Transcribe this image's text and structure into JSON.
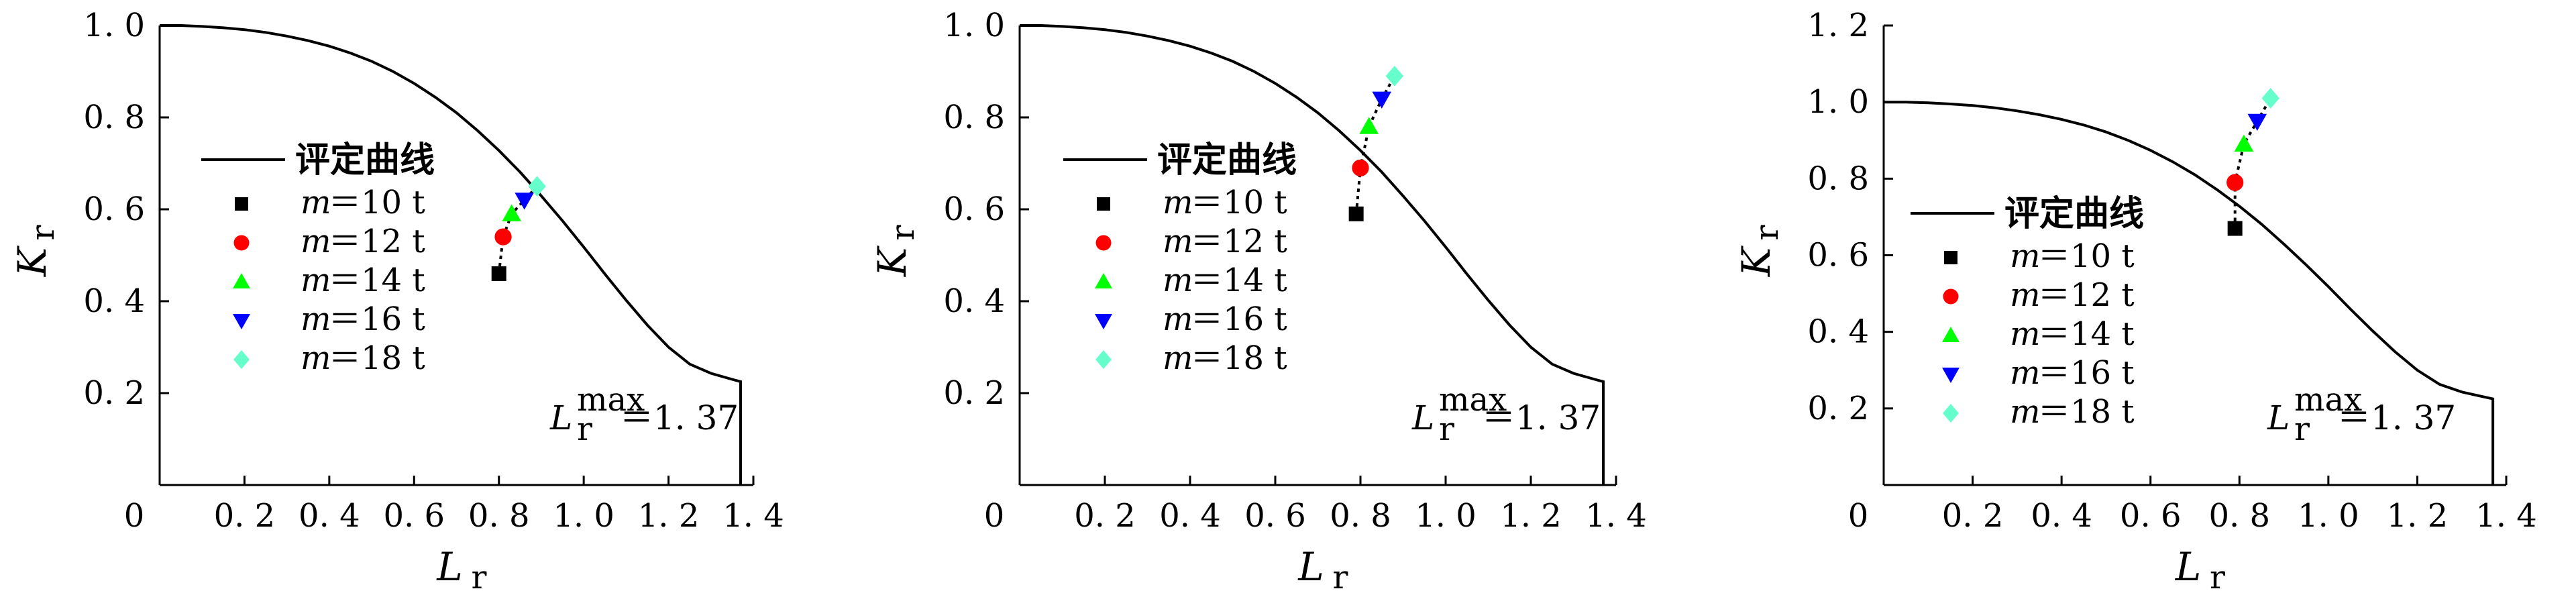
{
  "chart_data": [
    {
      "type": "line",
      "xlabel": "L",
      "xlabel_sub": "r",
      "ylabel": "K",
      "ylabel_sub": "r",
      "xlim": [
        0,
        1.4
      ],
      "ylim": [
        0,
        1.0
      ],
      "x_ticks": [
        0,
        0.2,
        0.4,
        0.6,
        0.8,
        1.0,
        1.2,
        1.4
      ],
      "x_tick_labels": [
        "0",
        "0. 2",
        "0. 4",
        "0. 6",
        "0. 8",
        "1. 0",
        "1. 2",
        "1. 4"
      ],
      "y_ticks": [
        0.2,
        0.4,
        0.6,
        0.8,
        1.0
      ],
      "y_tick_labels": [
        "0. 2",
        "0. 4",
        "0. 6",
        "0. 8",
        "1. 0"
      ],
      "legend": {
        "curve_label": "评定曲线",
        "items": [
          {
            "prefix": "m",
            "text": "＝10 t",
            "marker": "square",
            "color": "#000000"
          },
          {
            "prefix": "m",
            "text": "＝12 t",
            "marker": "circle",
            "color": "#ff0000"
          },
          {
            "prefix": "m",
            "text": "＝14 t",
            "marker": "triangle-up",
            "color": "#00ff00"
          },
          {
            "prefix": "m",
            "text": "＝16 t",
            "marker": "triangle-down",
            "color": "#0000ff"
          },
          {
            "prefix": "m",
            "text": "＝18 t",
            "marker": "diamond",
            "color": "#66ffcc"
          }
        ]
      },
      "annotation": {
        "main": "L",
        "sub": "r",
        "sup": "max",
        "value": "＝1. 37"
      },
      "points": [
        {
          "x": 0.8,
          "y": 0.46
        },
        {
          "x": 0.81,
          "y": 0.54
        },
        {
          "x": 0.83,
          "y": 0.59
        },
        {
          "x": 0.86,
          "y": 0.62
        },
        {
          "x": 0.89,
          "y": 0.65
        }
      ]
    },
    {
      "type": "line",
      "xlabel": "L",
      "xlabel_sub": "r",
      "ylabel": "K",
      "ylabel_sub": "r",
      "xlim": [
        0,
        1.4
      ],
      "ylim": [
        0,
        1.0
      ],
      "x_ticks": [
        0,
        0.2,
        0.4,
        0.6,
        0.8,
        1.0,
        1.2,
        1.4
      ],
      "x_tick_labels": [
        "0",
        "0. 2",
        "0. 4",
        "0. 6",
        "0. 8",
        "1. 0",
        "1. 2",
        "1. 4"
      ],
      "y_ticks": [
        0.2,
        0.4,
        0.6,
        0.8,
        1.0
      ],
      "y_tick_labels": [
        "0. 2",
        "0. 4",
        "0. 6",
        "0. 8",
        "1. 0"
      ],
      "legend": {
        "curve_label": "评定曲线",
        "items": [
          {
            "prefix": "m",
            "text": "＝10 t",
            "marker": "square",
            "color": "#000000"
          },
          {
            "prefix": "m",
            "text": "＝12 t",
            "marker": "circle",
            "color": "#ff0000"
          },
          {
            "prefix": "m",
            "text": "＝14 t",
            "marker": "triangle-up",
            "color": "#00ff00"
          },
          {
            "prefix": "m",
            "text": "＝16 t",
            "marker": "triangle-down",
            "color": "#0000ff"
          },
          {
            "prefix": "m",
            "text": "＝18 t",
            "marker": "diamond",
            "color": "#66ffcc"
          }
        ]
      },
      "annotation": {
        "main": "L",
        "sub": "r",
        "sup": "max",
        "value": "＝1. 37"
      },
      "points": [
        {
          "x": 0.79,
          "y": 0.59
        },
        {
          "x": 0.8,
          "y": 0.69
        },
        {
          "x": 0.82,
          "y": 0.78
        },
        {
          "x": 0.85,
          "y": 0.84
        },
        {
          "x": 0.88,
          "y": 0.89
        }
      ]
    },
    {
      "type": "line",
      "xlabel": "L",
      "xlabel_sub": "r",
      "ylabel": "K",
      "ylabel_sub": "r",
      "xlim": [
        0,
        1.4
      ],
      "ylim": [
        0,
        1.2
      ],
      "x_ticks": [
        0,
        0.2,
        0.4,
        0.6,
        0.8,
        1.0,
        1.2,
        1.4
      ],
      "x_tick_labels": [
        "0",
        "0. 2",
        "0. 4",
        "0. 6",
        "0. 8",
        "1. 0",
        "1. 2",
        "1. 4"
      ],
      "y_ticks": [
        0.2,
        0.4,
        0.6,
        0.8,
        1.0,
        1.2
      ],
      "y_tick_labels": [
        "0. 2",
        "0. 4",
        "0. 6",
        "0. 8",
        "1. 0",
        "1. 2"
      ],
      "legend": {
        "curve_label": "评定曲线",
        "items": [
          {
            "prefix": "m",
            "text": "＝10 t",
            "marker": "square",
            "color": "#000000"
          },
          {
            "prefix": "m",
            "text": "＝12 t",
            "marker": "circle",
            "color": "#ff0000"
          },
          {
            "prefix": "m",
            "text": "＝14 t",
            "marker": "triangle-up",
            "color": "#00ff00"
          },
          {
            "prefix": "m",
            "text": "＝16 t",
            "marker": "triangle-down",
            "color": "#0000ff"
          },
          {
            "prefix": "m",
            "text": "＝18 t",
            "marker": "diamond",
            "color": "#66ffcc"
          }
        ]
      },
      "annotation": {
        "main": "L",
        "sub": "r",
        "sup": "max",
        "value": "＝1. 37"
      },
      "points": [
        {
          "x": 0.79,
          "y": 0.67
        },
        {
          "x": 0.79,
          "y": 0.79
        },
        {
          "x": 0.81,
          "y": 0.89
        },
        {
          "x": 0.84,
          "y": 0.95
        },
        {
          "x": 0.87,
          "y": 1.01
        }
      ]
    }
  ],
  "curve": {
    "name": "评定曲线",
    "x": [
      0,
      0.05,
      0.1,
      0.15,
      0.2,
      0.25,
      0.3,
      0.35,
      0.4,
      0.45,
      0.5,
      0.55,
      0.6,
      0.65,
      0.7,
      0.75,
      0.8,
      0.85,
      0.9,
      0.95,
      1.0,
      1.05,
      1.1,
      1.15,
      1.2,
      1.25,
      1.3,
      1.35,
      1.37,
      1.37
    ],
    "y": [
      1.0,
      1.0,
      0.998,
      0.995,
      0.991,
      0.985,
      0.977,
      0.967,
      0.955,
      0.94,
      0.922,
      0.9,
      0.874,
      0.844,
      0.81,
      0.771,
      0.728,
      0.681,
      0.629,
      0.575,
      0.518,
      0.459,
      0.402,
      0.348,
      0.3,
      0.263,
      0.243,
      0.23,
      0.225,
      0.0
    ]
  }
}
